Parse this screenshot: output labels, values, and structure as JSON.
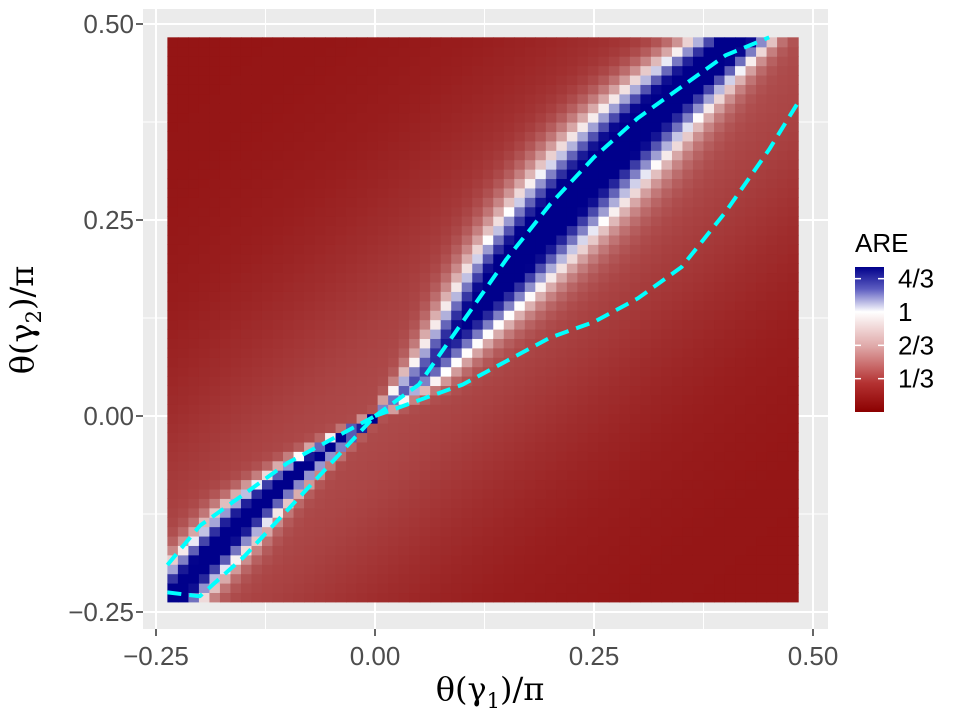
{
  "chart_data": {
    "type": "heatmap",
    "title": "",
    "xlabel": {
      "main": "θ(γ",
      "sub": "1",
      "tail": ")/π"
    },
    "ylabel": {
      "main": "θ(γ",
      "sub": "2",
      "tail": ")/π"
    },
    "xlim": [
      -0.25,
      0.5
    ],
    "ylim": [
      -0.25,
      0.5
    ],
    "x_ticks": [
      -0.25,
      0.0,
      0.25,
      0.5
    ],
    "y_ticks": [
      -0.25,
      0.0,
      0.25,
      0.5
    ],
    "x_tick_labels": [
      "−0.25",
      "0.00",
      "0.25",
      "0.50"
    ],
    "y_tick_labels": [
      "−0.25",
      "0.00",
      "0.25",
      "0.50"
    ],
    "data_extent": {
      "x": [
        -0.237,
        0.483
      ],
      "y": [
        -0.237,
        0.483
      ]
    },
    "grid": true,
    "legend": {
      "title": "ARE",
      "position": "right",
      "breaks": [
        0.3333,
        0.6667,
        1.0,
        1.3333
      ],
      "labels": [
        "1/3",
        "2/3",
        "1",
        "4/3"
      ],
      "range": [
        0.0,
        1.45
      ],
      "colors": {
        "low": "#8b0000",
        "mid": "#ffffff",
        "high": "#00008b",
        "midpoint": 1.0
      }
    },
    "contour": {
      "level": 1.0,
      "color": "#00ffff",
      "style": "dashed",
      "regions": [
        {
          "name": "upper",
          "upper_boundary": [
            [
              0.0,
              0.0
            ],
            [
              0.05,
              0.04
            ],
            [
              0.1,
              0.12
            ],
            [
              0.15,
              0.2
            ],
            [
              0.2,
              0.27
            ],
            [
              0.25,
              0.33
            ],
            [
              0.3,
              0.38
            ],
            [
              0.35,
              0.42
            ],
            [
              0.4,
              0.46
            ],
            [
              0.45,
              0.483
            ]
          ],
          "lower_boundary": [
            [
              0.0,
              0.0
            ],
            [
              0.05,
              0.02
            ],
            [
              0.1,
              0.04
            ],
            [
              0.15,
              0.07
            ],
            [
              0.2,
              0.1
            ],
            [
              0.25,
              0.12
            ],
            [
              0.3,
              0.15
            ],
            [
              0.35,
              0.19
            ],
            [
              0.4,
              0.26
            ],
            [
              0.45,
              0.34
            ],
            [
              0.483,
              0.4
            ]
          ]
        },
        {
          "name": "lower",
          "upper_boundary": [
            [
              -0.237,
              -0.19
            ],
            [
              -0.2,
              -0.14
            ],
            [
              -0.15,
              -0.1
            ],
            [
              -0.1,
              -0.06
            ],
            [
              -0.05,
              -0.03
            ],
            [
              0.0,
              0.0
            ]
          ],
          "lower_boundary": [
            [
              -0.237,
              -0.225
            ],
            [
              -0.2,
              -0.23
            ],
            [
              -0.15,
              -0.18
            ],
            [
              -0.1,
              -0.12
            ],
            [
              -0.05,
              -0.06
            ],
            [
              0.0,
              0.0
            ]
          ]
        }
      ]
    }
  }
}
